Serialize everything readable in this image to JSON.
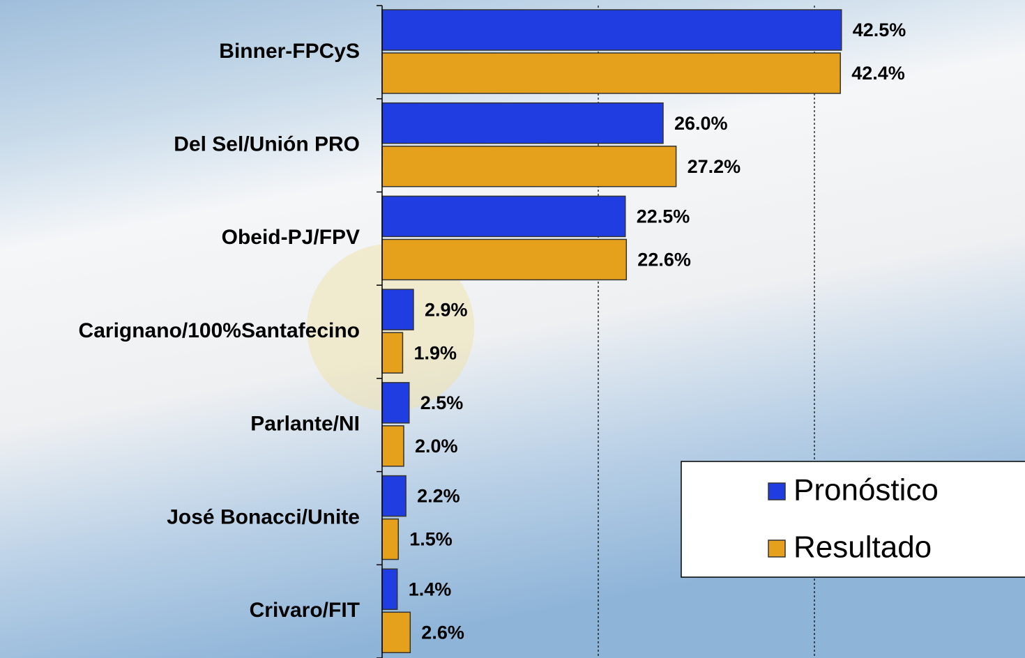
{
  "chart_data": {
    "type": "bar",
    "orientation": "horizontal",
    "categories": [
      "Binner-FPCyS",
      "Del Sel/Unión PRO",
      "Obeid-PJ/FPV",
      "Carignano/100%Santafecino",
      "Parlante/NI",
      "José Bonacci/Unite",
      "Crivaro/FIT"
    ],
    "series": [
      {
        "name": "Pronóstico",
        "color": "#1f3de0",
        "values": [
          42.5,
          26.0,
          22.5,
          2.9,
          2.5,
          2.2,
          1.4
        ],
        "value_labels": [
          "42.5%",
          "26.0%",
          "22.5%",
          "2.9%",
          "2.5%",
          "2.2%",
          "1.4%"
        ]
      },
      {
        "name": "Resultado",
        "color": "#e6a11c",
        "values": [
          42.4,
          27.2,
          22.6,
          1.9,
          2.0,
          1.5,
          2.6
        ],
        "value_labels": [
          "42.4%",
          "27.2%",
          "22.6%",
          "1.9%",
          "2.0%",
          "1.5%",
          "2.6%"
        ]
      }
    ],
    "xlim": [
      0,
      59
    ],
    "xticks": [
      0,
      20,
      40
    ],
    "grid": true,
    "legend": "lower right"
  }
}
